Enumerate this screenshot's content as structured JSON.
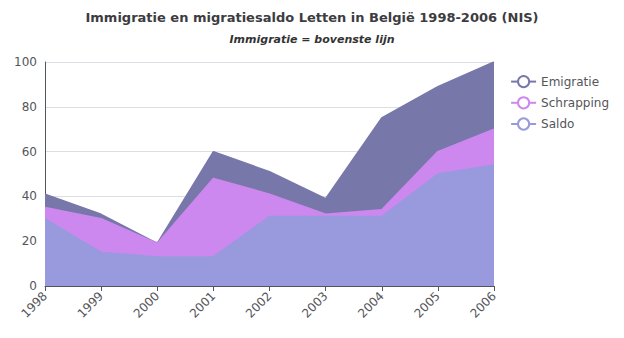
{
  "chart_data": {
    "type": "area",
    "title": "Immigratie en migratiesaldo Letten in België 1998-2006 (NIS)",
    "subtitle": "Immigratie = bovenste lijn",
    "categories": [
      "1998",
      "1999",
      "2000",
      "2001",
      "2002",
      "2003",
      "2004",
      "2005",
      "2006"
    ],
    "series": [
      {
        "name": "Emigratie",
        "color": "#7777aa",
        "values": [
          41,
          32,
          19,
          60,
          51,
          39,
          75,
          89,
          100
        ]
      },
      {
        "name": "Schrapping",
        "color": "#cc88ee",
        "values": [
          35,
          30,
          19,
          48,
          41,
          32,
          34,
          60,
          70
        ]
      },
      {
        "name": "Saldo",
        "color": "#9999dd",
        "values": [
          30,
          15,
          13,
          13,
          31,
          31,
          31,
          50,
          54
        ]
      }
    ],
    "ylim": [
      0,
      100
    ],
    "yticks": [
      0,
      20,
      40,
      60,
      80,
      100
    ],
    "grid": true,
    "legend": "right"
  }
}
